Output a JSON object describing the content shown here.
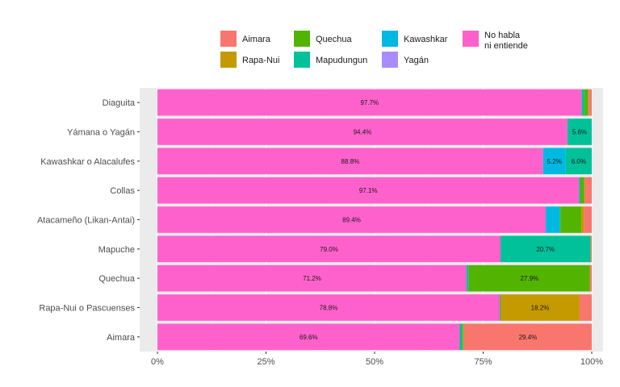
{
  "chart_data": {
    "type": "bar",
    "orientation": "horizontal",
    "stacked": true,
    "title": "",
    "xlabel": "",
    "ylabel": "",
    "xlim": [
      0,
      100
    ],
    "x_ticks": [
      "0%",
      "25%",
      "50%",
      "75%",
      "100%"
    ],
    "grid": true,
    "legend_position": "top",
    "categories": [
      "Diaguita",
      "Yámana o Yagán",
      "Kawashkar o Alacalufes",
      "Collas",
      "Atacameño (Likan-Antai)",
      "Mapuche",
      "Quechua",
      "Rapa-Nui o Pascuenses",
      "Aimara"
    ],
    "series": [
      {
        "name": "No habla ni entiende",
        "color": "#FF61CC",
        "values": [
          97.7,
          94.4,
          88.8,
          97.1,
          89.4,
          79.0,
          71.2,
          78.8,
          69.6
        ]
      },
      {
        "name": "Kawashkar",
        "color": "#00B9E3",
        "values": [
          0,
          0,
          5.2,
          0,
          3.2,
          0,
          0,
          0,
          0
        ]
      },
      {
        "name": "Yagán",
        "color": "#A98DFF",
        "values": [
          0,
          0,
          0,
          0,
          0,
          0,
          0,
          0,
          0
        ]
      },
      {
        "name": "Mapudungun",
        "color": "#00C19A",
        "values": [
          0.6,
          5.6,
          6.0,
          0.3,
          0.2,
          20.7,
          0.5,
          0.2,
          0.6
        ]
      },
      {
        "name": "Quechua",
        "color": "#53B400",
        "values": [
          0.9,
          0,
          0,
          0.9,
          4.8,
          0.1,
          27.9,
          0,
          0.2
        ]
      },
      {
        "name": "Rapa-Nui",
        "color": "#C49A00",
        "values": [
          0.1,
          0,
          0,
          0.1,
          0.6,
          0,
          0,
          18.2,
          0.2
        ]
      },
      {
        "name": "Aimara",
        "color": "#F8766D",
        "values": [
          0.7,
          0,
          0,
          1.6,
          1.8,
          0.2,
          0.4,
          2.8,
          29.4
        ]
      }
    ],
    "data_labels": [
      {
        "category": "Diaguita",
        "series": "No habla ni entiende",
        "text": "97.7%"
      },
      {
        "category": "Yámana o Yagán",
        "series": "No habla ni entiende",
        "text": "94.4%"
      },
      {
        "category": "Yámana o Yagán",
        "series": "Mapudungun",
        "text": "5.6%"
      },
      {
        "category": "Kawashkar o Alacalufes",
        "series": "No habla ni entiende",
        "text": "88.8%"
      },
      {
        "category": "Kawashkar o Alacalufes",
        "series": "Kawashkar",
        "text": "5.2%"
      },
      {
        "category": "Kawashkar o Alacalufes",
        "series": "Mapudungun",
        "text": "6.0%"
      },
      {
        "category": "Collas",
        "series": "No habla ni entiende",
        "text": "97.1%"
      },
      {
        "category": "Atacameño (Likan-Antai)",
        "series": "No habla ni entiende",
        "text": "89.4%"
      },
      {
        "category": "Mapuche",
        "series": "No habla ni entiende",
        "text": "79.0%"
      },
      {
        "category": "Mapuche",
        "series": "Mapudungun",
        "text": "20.7%"
      },
      {
        "category": "Quechua",
        "series": "No habla ni entiende",
        "text": "71.2%"
      },
      {
        "category": "Quechua",
        "series": "Quechua",
        "text": "27.9%"
      },
      {
        "category": "Rapa-Nui o Pascuenses",
        "series": "No habla ni entiende",
        "text": "78.8%"
      },
      {
        "category": "Rapa-Nui o Pascuenses",
        "series": "Rapa-Nui",
        "text": "18.2%"
      },
      {
        "category": "Aimara",
        "series": "No habla ni entiende",
        "text": "69.6%"
      },
      {
        "category": "Aimara",
        "series": "Aimara",
        "text": "29.4%"
      }
    ],
    "legend": [
      {
        "series": "Aimara",
        "lines": [
          "Aimara"
        ],
        "color": "#F8766D"
      },
      {
        "series": "Rapa-Nui",
        "lines": [
          "Rapa-Nui"
        ],
        "color": "#C49A00"
      },
      {
        "series": "Quechua",
        "lines": [
          "Quechua"
        ],
        "color": "#53B400"
      },
      {
        "series": "Mapudungun",
        "lines": [
          "Mapudungun"
        ],
        "color": "#00C19A"
      },
      {
        "series": "Kawashkar",
        "lines": [
          "Kawashkar"
        ],
        "color": "#00B9E3"
      },
      {
        "series": "Yagán",
        "lines": [
          "Yagán"
        ],
        "color": "#A98DFF"
      },
      {
        "series": "No habla ni entiende",
        "lines": [
          "No habla",
          "ni entiende"
        ],
        "color": "#FF61CC"
      }
    ],
    "colors": {
      "panel_background": "#EBEBEB",
      "grid_major": "#FFFFFF",
      "grid_minor": "#F5F5F5",
      "tick_text": "#4D4D4D"
    }
  }
}
